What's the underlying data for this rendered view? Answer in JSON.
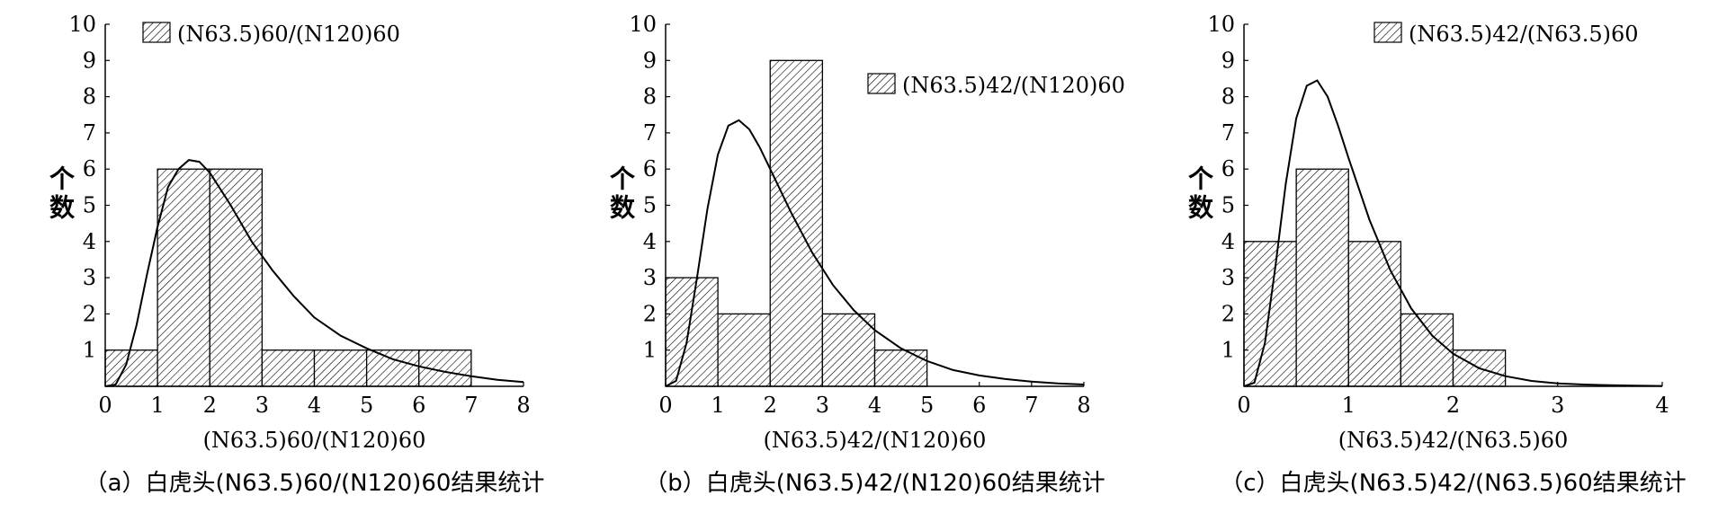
{
  "y_axis_title": "个数",
  "chart_data": [
    {
      "type": "bar",
      "legend": "(N63.5)60/(N120)60",
      "legend_pos": "top-left",
      "xlabel": "(N63.5)60/(N120)60",
      "caption": "（a）白虎头(N63.5)60/(N120)60结果统计",
      "xlim": [
        0,
        8
      ],
      "ylim": [
        0,
        10
      ],
      "x_ticks": [
        0,
        1,
        2,
        3,
        4,
        5,
        6,
        7,
        8
      ],
      "y_ticks": [
        1,
        2,
        3,
        4,
        5,
        6,
        7,
        8,
        9,
        10
      ],
      "bin_edges": [
        0,
        1,
        2,
        3,
        4,
        5,
        6,
        7
      ],
      "values": [
        1,
        6,
        6,
        1,
        1,
        1,
        1
      ],
      "curve": {
        "x": [
          0,
          0.2,
          0.4,
          0.6,
          0.8,
          1.0,
          1.2,
          1.4,
          1.6,
          1.8,
          2.0,
          2.4,
          2.8,
          3.2,
          3.6,
          4.0,
          4.5,
          5.0,
          5.5,
          6.0,
          6.5,
          7.0,
          7.5,
          8.0
        ],
        "y": [
          0,
          0.05,
          0.6,
          1.7,
          3.1,
          4.4,
          5.5,
          6.0,
          6.25,
          6.2,
          5.9,
          5.0,
          4.0,
          3.2,
          2.5,
          1.9,
          1.4,
          1.05,
          0.75,
          0.55,
          0.4,
          0.28,
          0.18,
          0.12
        ]
      }
    },
    {
      "type": "bar",
      "legend": "(N63.5)42/(N120)60",
      "legend_pos": "top-right",
      "xlabel": "(N63.5)42/(N120)60",
      "caption": "（b）白虎头(N63.5)42/(N120)60结果统计",
      "xlim": [
        0,
        8
      ],
      "ylim": [
        0,
        10
      ],
      "x_ticks": [
        0,
        1,
        2,
        3,
        4,
        5,
        6,
        7,
        8
      ],
      "y_ticks": [
        1,
        2,
        3,
        4,
        5,
        6,
        7,
        8,
        9,
        10
      ],
      "bin_edges": [
        0,
        1,
        2,
        3,
        4,
        5
      ],
      "values": [
        3,
        2,
        9,
        2,
        1
      ],
      "curve": {
        "x": [
          0,
          0.2,
          0.4,
          0.6,
          0.8,
          1.0,
          1.2,
          1.4,
          1.6,
          1.8,
          2.0,
          2.4,
          2.8,
          3.2,
          3.6,
          4.0,
          4.5,
          5.0,
          5.5,
          6.0,
          6.5,
          7.0,
          7.5,
          8.0
        ],
        "y": [
          0,
          0.15,
          1.2,
          3.0,
          4.9,
          6.4,
          7.2,
          7.35,
          7.1,
          6.6,
          6.0,
          4.8,
          3.7,
          2.8,
          2.1,
          1.55,
          1.05,
          0.7,
          0.45,
          0.3,
          0.2,
          0.13,
          0.08,
          0.05
        ]
      }
    },
    {
      "type": "bar",
      "legend": "(N63.5)42/(N63.5)60",
      "legend_pos": "top-center",
      "xlabel": "(N63.5)42/(N63.5)60",
      "caption": "（c）白虎头(N63.5)42/(N63.5)60结果统计",
      "xlim": [
        0,
        4
      ],
      "ylim": [
        0,
        10
      ],
      "x_ticks": [
        0,
        1,
        2,
        3,
        4
      ],
      "y_ticks": [
        1,
        2,
        3,
        4,
        5,
        6,
        7,
        8,
        9,
        10
      ],
      "bin_edges": [
        0,
        0.5,
        1.0,
        1.5,
        2.0,
        2.5
      ],
      "values": [
        4,
        6,
        4,
        2,
        1
      ],
      "curve": {
        "x": [
          0,
          0.1,
          0.2,
          0.3,
          0.4,
          0.5,
          0.6,
          0.7,
          0.8,
          0.9,
          1.0,
          1.2,
          1.4,
          1.6,
          1.8,
          2.0,
          2.25,
          2.5,
          2.75,
          3.0,
          3.25,
          3.5,
          3.75,
          4.0
        ],
        "y": [
          0,
          0.1,
          1.2,
          3.3,
          5.6,
          7.4,
          8.3,
          8.45,
          8.0,
          7.2,
          6.3,
          4.6,
          3.2,
          2.15,
          1.4,
          0.9,
          0.5,
          0.28,
          0.15,
          0.08,
          0.05,
          0.03,
          0.02,
          0.01
        ]
      }
    }
  ]
}
